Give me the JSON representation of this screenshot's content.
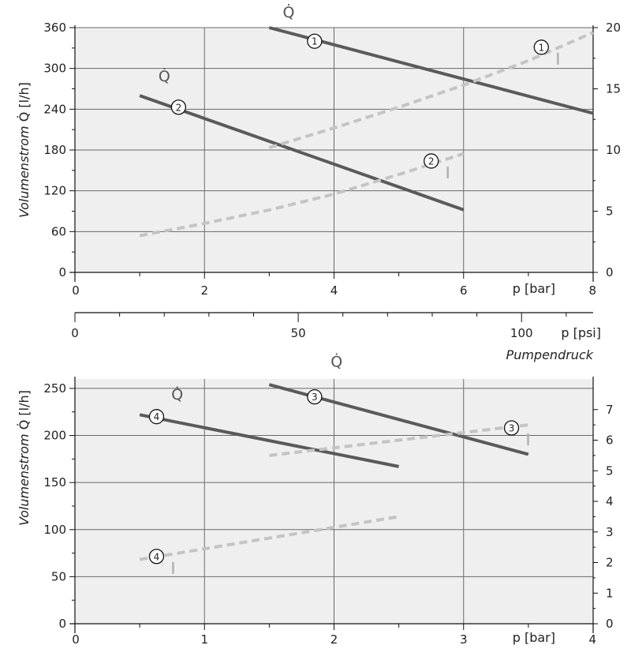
{
  "chart_data": [
    {
      "type": "line",
      "ylabel": "Volumenstrom",
      "ylabel_symbol": "Q̇",
      "ylabel_unit": "[l/h]",
      "xlabel": "p",
      "xlabel_unit": "[bar]",
      "secondary_xlabel": "p",
      "secondary_xlabel_unit": "[psi]",
      "secondary_x_ticks": [
        "0",
        "50",
        "100"
      ],
      "secondary_x_ticks_values": [
        0,
        50,
        100
      ],
      "caption": "Pumpendruck",
      "xlim": [
        0,
        8
      ],
      "ylim": [
        0,
        360
      ],
      "y2lim": [
        0,
        20
      ],
      "x_ticks": [
        "0",
        "2",
        "4",
        "6",
        "8"
      ],
      "y_ticks": [
        "0",
        "60",
        "120",
        "180",
        "240",
        "300",
        "360"
      ],
      "y2_ticks": [
        "0",
        "5",
        "10",
        "15",
        "20"
      ],
      "series": [
        {
          "name": "1",
          "quantity": "Q̇",
          "axis": "left",
          "style": "solid",
          "color": "#5a5a5a",
          "x": [
            3,
            8
          ],
          "y": [
            360,
            234
          ]
        },
        {
          "name": "2",
          "quantity": "Q̇",
          "axis": "left",
          "style": "solid",
          "color": "#5a5a5a",
          "x": [
            1,
            6
          ],
          "y": [
            260,
            92
          ]
        },
        {
          "name": "1",
          "quantity": "I",
          "axis": "right",
          "style": "dashed",
          "color": "#c4c4c4",
          "x": [
            3,
            4,
            5,
            6,
            7,
            8
          ],
          "y": [
            10.2,
            11.8,
            13.5,
            15.3,
            17.3,
            19.6
          ]
        },
        {
          "name": "2",
          "quantity": "I",
          "axis": "right",
          "style": "dashed",
          "color": "#c4c4c4",
          "x": [
            1,
            2,
            3,
            4,
            5,
            6
          ],
          "y": [
            3.0,
            4.0,
            5.1,
            6.4,
            8.0,
            9.7
          ]
        }
      ],
      "labels": [
        {
          "text": "1",
          "series_symbol": "Q̇",
          "x": 3.7,
          "y": 340
        },
        {
          "text": "1",
          "series_symbol": "I",
          "x": 7.2,
          "y": 18.4
        },
        {
          "text": "2",
          "series_symbol": "Q̇",
          "x": 1.6,
          "y": 243
        },
        {
          "text": "2",
          "series_symbol": "I",
          "x": 5.5,
          "y": 9.1
        }
      ]
    },
    {
      "type": "line",
      "ylabel": "Volumenstrom",
      "ylabel_symbol": "Q̇",
      "ylabel_unit": "[l/h]",
      "xlabel": "p",
      "xlabel_unit": "[bar]",
      "xlim": [
        0,
        4
      ],
      "ylim": [
        0,
        260
      ],
      "y2lim": [
        0,
        8
      ],
      "x_ticks": [
        "0",
        "1",
        "2",
        "3",
        "4"
      ],
      "y_ticks": [
        "0",
        "50",
        "100",
        "150",
        "200",
        "250"
      ],
      "y2_ticks": [
        "0",
        "1",
        "2",
        "3",
        "4",
        "5",
        "6",
        "7"
      ],
      "series": [
        {
          "name": "3",
          "quantity": "Q̇",
          "axis": "left",
          "style": "solid",
          "color": "#5a5a5a",
          "x": [
            1.5,
            3.5
          ],
          "y": [
            254,
            180
          ]
        },
        {
          "name": "4",
          "quantity": "Q̇",
          "axis": "left",
          "style": "solid",
          "color": "#5a5a5a",
          "x": [
            0.5,
            2.5
          ],
          "y": [
            222,
            167
          ]
        },
        {
          "name": "3",
          "quantity": "I",
          "axis": "right",
          "style": "dashed",
          "color": "#c4c4c4",
          "x": [
            1.5,
            3.5
          ],
          "y": [
            5.5,
            6.5
          ]
        },
        {
          "name": "4",
          "quantity": "I",
          "axis": "right",
          "style": "dashed",
          "color": "#c4c4c4",
          "x": [
            0.5,
            2.5
          ],
          "y": [
            2.1,
            3.5
          ]
        }
      ],
      "labels": [
        {
          "text": "3",
          "series_symbol": "Q̇",
          "x": 1.85,
          "y": 241
        },
        {
          "text": "3",
          "series_symbol": "I",
          "x": 3.37,
          "y": 6.4
        },
        {
          "text": "4",
          "series_symbol": "Q̇",
          "x": 0.63,
          "y": 220
        },
        {
          "text": "4",
          "series_symbol": "I",
          "x": 0.63,
          "y": 2.2
        }
      ]
    }
  ]
}
